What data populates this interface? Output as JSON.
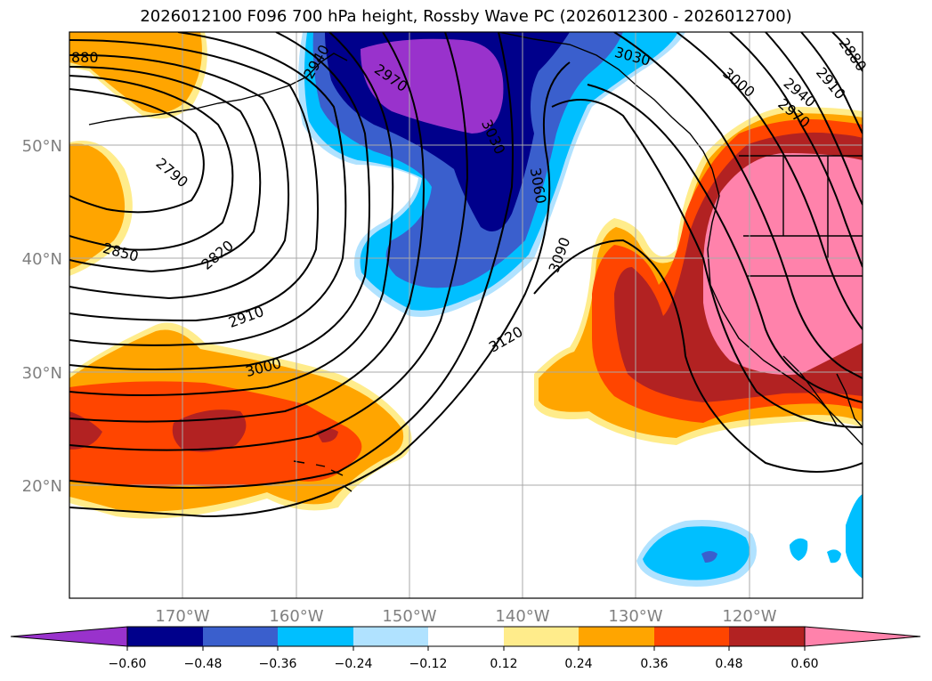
{
  "title": "2026012100 F096 700 hPa height, Rossby Wave PC (2026012300 - 2026012700)",
  "map": {
    "lon_range": [
      180,
      110
    ],
    "lat_range": [
      10,
      60
    ],
    "lon_ticks": [
      "170°W",
      "160°W",
      "150°W",
      "140°W",
      "130°W",
      "120°W"
    ],
    "lat_ticks": [
      "20°N",
      "30°N",
      "40°N",
      "50°N"
    ],
    "contour_labels": [
      "880",
      "2790",
      "2820",
      "2850",
      "2910",
      "3000",
      "2940",
      "2970",
      "3030",
      "3060",
      "3090",
      "3120",
      "3030",
      "3000",
      "2940",
      "2910",
      "2970",
      "2880"
    ]
  },
  "colorbar": {
    "ticks": [
      "−0.60",
      "−0.48",
      "−0.36",
      "−0.24",
      "−0.12",
      "0.12",
      "0.24",
      "0.36",
      "0.48",
      "0.60"
    ],
    "colors": [
      "#9932cc",
      "#00008b",
      "#3a5fcd",
      "#00bfff",
      "#b0e2ff",
      "#ffffff",
      "#ffec8b",
      "#ffa500",
      "#ff4500",
      "#b22222",
      "#ff82ab"
    ]
  },
  "fill_colors": {
    "purple": "#9932cc",
    "navy": "#00008b",
    "royal": "#3a5fcd",
    "sky": "#00bfff",
    "light_blue": "#b0e2ff",
    "yellow": "#ffec8b",
    "orange": "#ffa500",
    "red_orange": "#ff4500",
    "firebrick": "#b22222",
    "pink": "#ff82ab"
  }
}
